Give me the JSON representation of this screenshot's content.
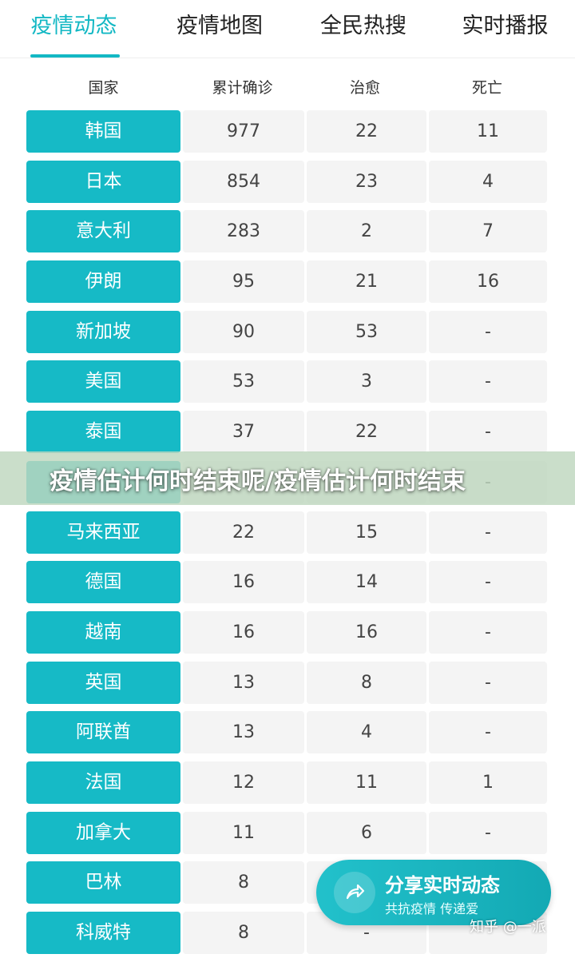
{
  "tabs": [
    "疫情动态",
    "疫情地图",
    "全民热搜",
    "实时播报"
  ],
  "table": {
    "headers": [
      "国家",
      "累计确诊",
      "治愈",
      "死亡"
    ],
    "rows": [
      [
        "韩国",
        "977",
        "22",
        "11"
      ],
      [
        "日本",
        "854",
        "23",
        "4"
      ],
      [
        "意大利",
        "283",
        "2",
        "7"
      ],
      [
        "伊朗",
        "95",
        "21",
        "16"
      ],
      [
        "新加坡",
        "90",
        "53",
        "-"
      ],
      [
        "美国",
        "53",
        "3",
        "-"
      ],
      [
        "泰国",
        "37",
        "22",
        "-"
      ],
      [
        "",
        "",
        "",
        "-"
      ],
      [
        "马来西亚",
        "22",
        "15",
        "-"
      ],
      [
        "德国",
        "16",
        "14",
        "-"
      ],
      [
        "越南",
        "16",
        "16",
        "-"
      ],
      [
        "英国",
        "13",
        "8",
        "-"
      ],
      [
        "阿联酋",
        "13",
        "4",
        "-"
      ],
      [
        "法国",
        "12",
        "11",
        "1"
      ],
      [
        "加拿大",
        "11",
        "6",
        "-"
      ],
      [
        "巴林",
        "8",
        "",
        ""
      ],
      [
        "科威特",
        "8",
        "-",
        ""
      ]
    ]
  },
  "banner": {
    "text": "疫情估计何时结束呢/疫情估计何时结束"
  },
  "share": {
    "title": "分享实时动态",
    "subtitle": "共抗疫情 传递爱",
    "icon": "share-arrow-icon"
  },
  "watermark": "知乎 @一派",
  "colors": {
    "accent": "#16bac6",
    "cell_bg": "#f4f4f4"
  }
}
